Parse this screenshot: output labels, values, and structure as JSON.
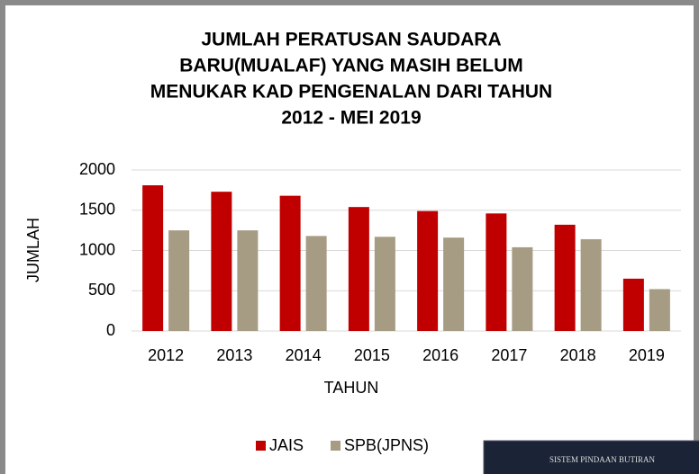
{
  "chart_data": {
    "type": "bar",
    "title": [
      "JUMLAH PERATUSAN SAUDARA",
      "BARU(MUALAF) YANG MASIH BELUM",
      "MENUKAR KAD PENGENALAN  DARI TAHUN",
      "2012 -  MEI 2019"
    ],
    "x_label": "TAHUN",
    "y_label": "JUMLAH",
    "categories": [
      "2012",
      "2013",
      "2014",
      "2015",
      "2016",
      "2017",
      "2018",
      "2019"
    ],
    "series": [
      {
        "name": "JAIS",
        "color": "#c00000",
        "values": [
          1810,
          1730,
          1680,
          1540,
          1490,
          1460,
          1320,
          650
        ]
      },
      {
        "name": "SPB(JPNS)",
        "color": "#a69b83",
        "values": [
          1250,
          1250,
          1180,
          1170,
          1160,
          1040,
          1140,
          520
        ]
      }
    ],
    "ylim": [
      0,
      2000
    ],
    "yticks": [
      0,
      500,
      1000,
      1500,
      2000
    ],
    "grid": true,
    "legend": "bottom",
    "inset_text": "SISTEM PINDAAN BUTIRAN"
  }
}
